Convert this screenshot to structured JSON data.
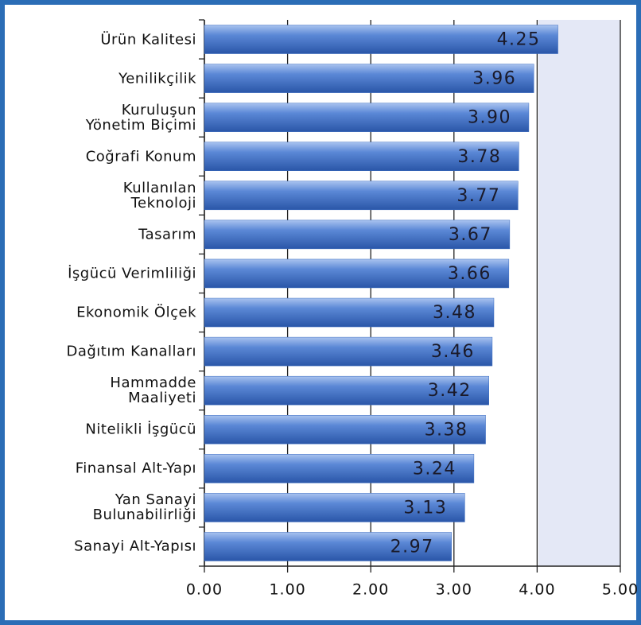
{
  "chart_data": {
    "type": "bar",
    "orientation": "horizontal",
    "categories": [
      "Ürün Kalitesi",
      "Yenilikçilik",
      "Kuruluşun\nYönetim Biçimi",
      "Coğrafi Konum",
      "Kullanılan\nTeknoloji",
      "Tasarım",
      "İşgücü Verimliliği",
      "Ekonomik Ölçek",
      "Dağıtım Kanalları",
      "Hammadde\nMaaliyeti",
      "Nitelikli İşgücü",
      "Finansal Alt-Yapı",
      "Yan Sanayi\nBulunabilirliği",
      "Sanayi Alt-Yapısı"
    ],
    "values": [
      4.25,
      3.96,
      3.9,
      3.78,
      3.77,
      3.67,
      3.66,
      3.48,
      3.46,
      3.42,
      3.38,
      3.24,
      3.13,
      2.97
    ],
    "value_labels": [
      "4.25",
      "3.96",
      "3.90",
      "3.78",
      "3.77",
      "3.67",
      "3.66",
      "3.48",
      "3.46",
      "3.42",
      "3.38",
      "3.24",
      "3.13",
      "2.97"
    ],
    "color": "#3b6cc0",
    "xlim": [
      0,
      5
    ],
    "xticks": [
      {
        "value": 0,
        "label": "0.00"
      },
      {
        "value": 1,
        "label": "1.00"
      },
      {
        "value": 2,
        "label": "2.00"
      },
      {
        "value": 3,
        "label": "3.00"
      },
      {
        "value": 4,
        "label": "4.00"
      },
      {
        "value": 5,
        "label": "5.00"
      }
    ],
    "grid": true
  }
}
